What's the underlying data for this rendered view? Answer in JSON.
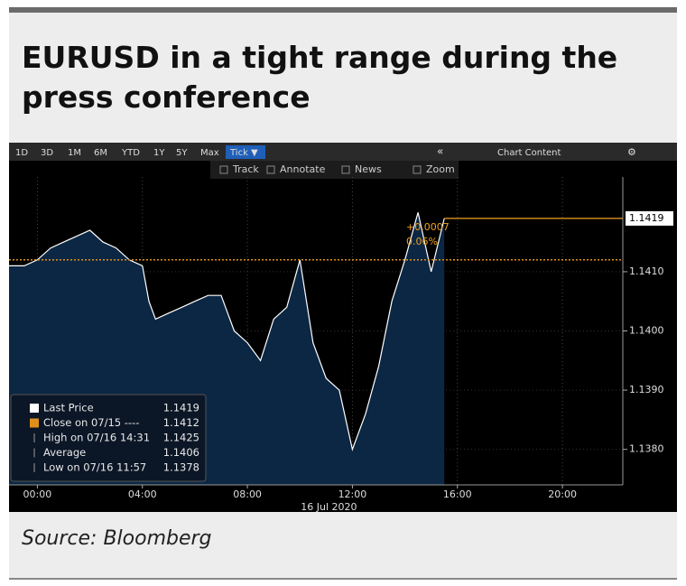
{
  "header": {
    "title": "EURUSD in a tight range during the press conference"
  },
  "toolbar": {
    "ranges": [
      "1D",
      "3D",
      "1M",
      "6M",
      "YTD",
      "1Y",
      "5Y",
      "Max",
      "Tick ▼"
    ],
    "collapse": "«",
    "content": "Chart Content",
    "actions": [
      "Track",
      "Annotate",
      "News",
      "Zoom"
    ]
  },
  "chart_data": {
    "type": "area",
    "x": [
      -1.08,
      -0.5,
      0,
      0.5,
      1,
      1.5,
      2,
      2.5,
      3,
      3.5,
      4,
      4.25,
      4.5,
      5,
      5.5,
      6,
      6.5,
      7,
      7.5,
      8,
      8.5,
      9,
      9.5,
      10,
      10.5,
      11,
      11.5,
      12,
      12.5,
      13,
      13.5,
      14,
      14.5,
      15,
      15.5
    ],
    "series": [
      {
        "name": "Last Price",
        "color": "#ffffff",
        "fill": "#0c2744",
        "values": [
          1.1411,
          1.1411,
          1.1412,
          1.1414,
          1.1415,
          1.1416,
          1.1417,
          1.1415,
          1.1414,
          1.1412,
          1.1411,
          1.1405,
          1.1402,
          1.1403,
          1.1404,
          1.1405,
          1.1406,
          1.1406,
          1.14,
          1.1398,
          1.1395,
          1.1402,
          1.1404,
          1.1412,
          1.1398,
          1.1392,
          1.139,
          1.138,
          1.1386,
          1.1394,
          1.1405,
          1.1412,
          1.142,
          1.141,
          1.1419
        ]
      }
    ],
    "xlim": [
      -1.08,
      22.3
    ],
    "xticks": [
      {
        "value": 0,
        "label": "00:00"
      },
      {
        "value": 4,
        "label": "04:00"
      },
      {
        "value": 8,
        "label": "08:00"
      },
      {
        "value": 12,
        "label": "12:00"
      },
      {
        "value": 16,
        "label": "16:00"
      },
      {
        "value": 20,
        "label": "20:00"
      }
    ],
    "date_label": "16 Jul 2020",
    "ylim": [
      1.1374,
      1.1426
    ],
    "yticks": [
      {
        "value": 1.138,
        "label": "1.1380"
      },
      {
        "value": 1.139,
        "label": "1.1390"
      },
      {
        "value": 1.14,
        "label": "1.1400"
      },
      {
        "value": 1.141,
        "label": "1.1410"
      }
    ],
    "grid": true,
    "last_price": {
      "value": 1.1419,
      "change": "+0.0007",
      "change_pct": "0.06%",
      "color": "#f0a020"
    },
    "close_line": {
      "value": 1.1412,
      "color": "#e0901a"
    },
    "legend": [
      {
        "label": "Last Price",
        "value": 1.1419
      },
      {
        "label": "Close on 07/15 ----",
        "value": 1.1412
      },
      {
        "label": "High on 07/16 14:31",
        "value": 1.1425
      },
      {
        "label": "Average",
        "value": 1.1406
      },
      {
        "label": "Low on 07/16 11:57",
        "value": 1.1378
      }
    ]
  },
  "footer": {
    "source": "Source: Bloomberg"
  }
}
